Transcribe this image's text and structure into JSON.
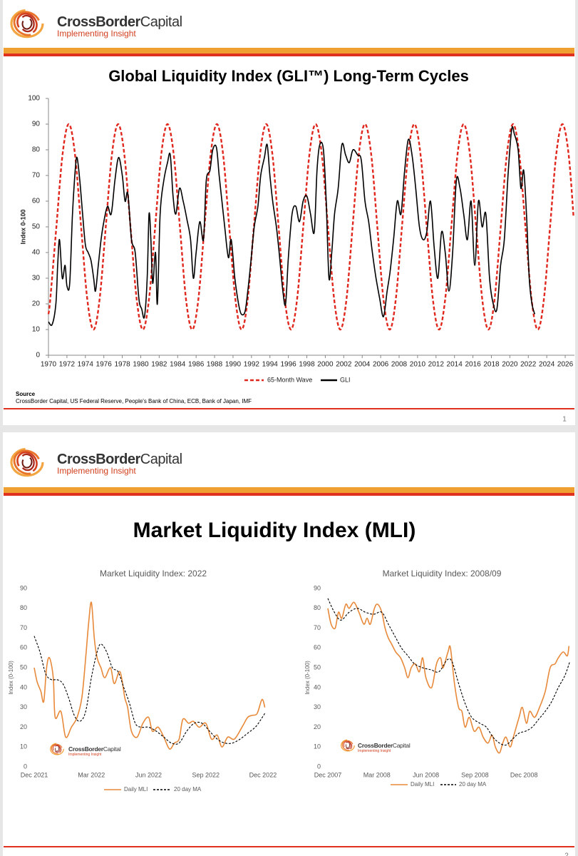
{
  "slides": [
    {
      "logo": {
        "name_bold": "CrossBorder",
        "name_regular": "Capital",
        "tagline": "Implementing Insight"
      },
      "title": "Global Liquidity Index (GLI™) Long-Term Cycles",
      "source_label": "Source",
      "source": "CrossBorder Capital, US Federal Reserve, People's Bank of China, ECB, Bank of Japan, IMF",
      "page": "1"
    },
    {
      "logo": {
        "name_bold": "CrossBorder",
        "name_regular": "Capital",
        "tagline": "Implementing Insight"
      },
      "title": "Market Liquidity Index (MLI)",
      "page": "2"
    }
  ],
  "chart_data": [
    {
      "type": "line",
      "ylabel": "Index 0-100",
      "xlim": [
        1970,
        2027
      ],
      "ylim": [
        0,
        100
      ],
      "yticks": [
        0,
        10,
        20,
        30,
        40,
        50,
        60,
        70,
        80,
        90,
        100
      ],
      "xticks": [
        1970,
        1972,
        1974,
        1976,
        1978,
        1980,
        1982,
        1984,
        1986,
        1988,
        1990,
        1992,
        1994,
        1996,
        1998,
        2000,
        2002,
        2004,
        2006,
        2008,
        2010,
        2012,
        2014,
        2016,
        2018,
        2020,
        2022,
        2024,
        2026
      ],
      "series": [
        {
          "name": "65-Month Wave",
          "color": "#e0281e",
          "dash": true,
          "x": [
            1970.0,
            1970.19,
            1970.86,
            1971.53,
            1972.2,
            1972.87,
            1973.54,
            1974.21,
            1974.88,
            1975.54,
            1976.21,
            1976.88,
            1977.55,
            1978.22,
            1978.89,
            1979.56,
            1980.23,
            1980.89,
            1981.56,
            1982.23,
            1982.9,
            1983.57,
            1984.24,
            1984.91,
            1985.58,
            1986.24,
            1986.91,
            1987.58,
            1988.25,
            1988.92,
            1989.59,
            1990.26,
            1990.93,
            1991.59,
            1992.26,
            1992.93,
            1993.6,
            1994.27,
            1994.94,
            1995.61,
            1996.28,
            1996.94,
            1997.61,
            1998.28,
            1998.95,
            1999.62,
            2000.29,
            2000.96,
            2001.63,
            2002.29,
            2002.96,
            2003.63,
            2004.3,
            2004.97,
            2005.64,
            2006.31,
            2006.98,
            2007.64,
            2008.31,
            2008.98,
            2009.65,
            2010.32,
            2010.99,
            2011.66,
            2012.33,
            2012.99,
            2013.66,
            2014.33,
            2015.0,
            2015.67,
            2016.34,
            2017.01,
            2017.68,
            2018.34,
            2019.01,
            2019.68,
            2020.35,
            2021.02,
            2021.69,
            2022.36,
            2023.03,
            2023.69,
            2024.36,
            2025.03,
            2025.7,
            2026.37,
            2026.9
          ],
          "values": [
            16,
            21.7,
            50,
            78.3,
            90,
            78.3,
            50,
            21.7,
            10,
            21.7,
            50,
            78.3,
            90,
            78.3,
            50,
            21.7,
            10,
            21.7,
            50,
            78.3,
            90,
            78.3,
            50,
            21.7,
            10,
            21.7,
            50,
            78.3,
            90,
            78.3,
            50,
            21.7,
            10,
            21.7,
            50,
            78.3,
            90,
            78.3,
            50,
            21.7,
            10,
            21.7,
            50,
            78.3,
            90,
            78.3,
            50,
            21.7,
            10,
            21.7,
            50,
            78.3,
            90,
            78.3,
            50,
            21.7,
            10,
            21.7,
            50,
            78.3,
            90,
            78.3,
            50,
            21.7,
            10,
            21.7,
            50,
            78.3,
            90,
            78.3,
            50,
            21.7,
            10,
            21.7,
            50,
            78.3,
            90,
            78.3,
            50,
            21.7,
            10,
            21.7,
            50,
            78.3,
            90,
            78.3,
            54
          ]
        },
        {
          "name": "GLI",
          "color": "#000000",
          "dash": false,
          "x": [
            1970.0,
            1970.4,
            1970.8,
            1971.0,
            1971.2,
            1971.5,
            1971.8,
            1972.0,
            1972.3,
            1972.6,
            1972.9,
            1973.1,
            1973.4,
            1973.7,
            1974.0,
            1974.3,
            1974.6,
            1974.9,
            1975.1,
            1975.4,
            1975.7,
            1976.0,
            1976.4,
            1976.8,
            1977.2,
            1977.6,
            1978.0,
            1978.3,
            1978.6,
            1979.0,
            1979.4,
            1979.8,
            1980.1,
            1980.4,
            1980.7,
            1980.9,
            1981.1,
            1981.3,
            1981.6,
            1981.8,
            1982.1,
            1982.5,
            1982.9,
            1983.2,
            1983.5,
            1983.8,
            1984.2,
            1984.6,
            1985.0,
            1985.4,
            1985.7,
            1986.0,
            1986.4,
            1986.8,
            1987.1,
            1987.5,
            1987.8,
            1988.2,
            1988.5,
            1988.8,
            1989.1,
            1989.5,
            1989.8,
            1990.2,
            1990.6,
            1990.9,
            1991.3,
            1991.6,
            1991.9,
            1992.3,
            1992.7,
            1993.0,
            1993.4,
            1993.7,
            1994.0,
            1994.3,
            1994.7,
            1995.0,
            1995.4,
            1995.7,
            1996.0,
            1996.4,
            1996.8,
            1997.2,
            1997.6,
            1998.0,
            1998.4,
            1998.8,
            1999.1,
            1999.4,
            1999.8,
            2000.1,
            2000.4,
            2000.7,
            2001.0,
            2001.4,
            2001.8,
            2002.2,
            2002.6,
            2003.0,
            2003.5,
            2003.9,
            2004.3,
            2004.7,
            2005.1,
            2005.5,
            2005.9,
            2006.3,
            2006.7,
            2007.0,
            2007.4,
            2007.8,
            2008.2,
            2008.6,
            2009.0,
            2009.4,
            2009.8,
            2010.2,
            2010.6,
            2011.0,
            2011.4,
            2011.8,
            2012.2,
            2012.6,
            2013.0,
            2013.4,
            2013.8,
            2014.2,
            2014.6,
            2015.0,
            2015.4,
            2015.8,
            2016.2,
            2016.6,
            2017.0,
            2017.4,
            2017.8,
            2018.2,
            2018.6,
            2019.0,
            2019.4,
            2019.8,
            2020.2,
            2020.5,
            2020.9,
            2021.2,
            2021.5,
            2021.8,
            2022.1,
            2022.4,
            2022.7
          ],
          "values": [
            13,
            12,
            20,
            35,
            45,
            30,
            35,
            27,
            28,
            55,
            72,
            77,
            68,
            55,
            43,
            40,
            37,
            30,
            25,
            35,
            45,
            52,
            58,
            55,
            68,
            77,
            70,
            60,
            63,
            45,
            40,
            22,
            18,
            15,
            30,
            55,
            45,
            28,
            40,
            20,
            55,
            68,
            75,
            78,
            62,
            55,
            65,
            60,
            53,
            45,
            30,
            40,
            52,
            45,
            68,
            72,
            80,
            81,
            70,
            60,
            50,
            38,
            45,
            30,
            20,
            16,
            17,
            25,
            35,
            50,
            58,
            70,
            77,
            82,
            70,
            60,
            50,
            40,
            25,
            20,
            38,
            55,
            58,
            52,
            60,
            62,
            55,
            48,
            72,
            82,
            80,
            60,
            30,
            40,
            55,
            65,
            82,
            78,
            75,
            80,
            78,
            76,
            60,
            52,
            40,
            30,
            22,
            15,
            25,
            32,
            45,
            60,
            55,
            72,
            84,
            78,
            65,
            50,
            45,
            48,
            60,
            42,
            30,
            48,
            40,
            25,
            40,
            68,
            65,
            55,
            45,
            60,
            35,
            60,
            50,
            55,
            30,
            20,
            18,
            35,
            45,
            70,
            88,
            86,
            80,
            65,
            72,
            55,
            30,
            20,
            16
          ]
        }
      ]
    },
    {
      "type": "line",
      "title": "Market Liquidity Index: 2022",
      "ylabel": "Index (0-100)",
      "xlim": [
        0,
        12.6
      ],
      "ylim": [
        0,
        90
      ],
      "yticks": [
        0,
        10,
        20,
        30,
        40,
        50,
        60,
        70,
        80,
        90
      ],
      "xticks": [
        {
          "value": 0,
          "label": "Dec 2021"
        },
        {
          "value": 3,
          "label": "Mar 2022"
        },
        {
          "value": 6,
          "label": "Jun 2022"
        },
        {
          "value": 9,
          "label": "Sep 2022"
        },
        {
          "value": 12,
          "label": "Dec 2022"
        }
      ],
      "watermark": {
        "name_bold": "CrossBorder",
        "name_regular": "Capital",
        "tagline": "Implementing Insight"
      },
      "series": [
        {
          "name": "Daily MLI",
          "color": "#e8893a",
          "dash": false,
          "x": [
            0,
            0.15,
            0.35,
            0.5,
            0.65,
            0.8,
            1.0,
            1.1,
            1.4,
            1.65,
            1.95,
            2.25,
            2.5,
            2.7,
            2.85,
            3.0,
            3.15,
            3.3,
            3.5,
            3.7,
            4.0,
            4.2,
            4.5,
            4.75,
            4.9,
            5.1,
            5.4,
            5.7,
            6.0,
            6.2,
            6.5,
            6.8,
            7.1,
            7.35,
            7.6,
            7.8,
            8.1,
            8.35,
            8.65,
            9.0,
            9.3,
            9.6,
            9.85,
            10.15,
            10.5,
            10.9,
            11.2,
            11.45,
            11.7,
            11.95,
            12.1
          ],
          "values": [
            50,
            43,
            38,
            33,
            50,
            55,
            45,
            25,
            28,
            15,
            20,
            25,
            35,
            55,
            72,
            83,
            65,
            55,
            50,
            45,
            50,
            42,
            48,
            35,
            30,
            18,
            15,
            22,
            25,
            18,
            20,
            15,
            9,
            12,
            14,
            24,
            22,
            23,
            20,
            22,
            14,
            16,
            10,
            15,
            14,
            20,
            25,
            26,
            27,
            34,
            30
          ]
        },
        {
          "name": "20 day MA",
          "color": "#000000",
          "dash": true,
          "x": [
            0,
            0.3,
            0.6,
            0.9,
            1.2,
            1.5,
            1.8,
            2.1,
            2.4,
            2.7,
            3.0,
            3.3,
            3.5,
            3.8,
            4.1,
            4.4,
            4.7,
            5.0,
            5.3,
            5.6,
            6.0,
            6.4,
            6.8,
            7.2,
            7.6,
            8.0,
            8.4,
            8.8,
            9.2,
            9.6,
            10.0,
            10.4,
            10.8,
            11.2,
            11.6,
            11.9,
            12.1
          ],
          "values": [
            66,
            58,
            47,
            44,
            44,
            42,
            35,
            26,
            23,
            28,
            45,
            58,
            62,
            58,
            50,
            48,
            40,
            32,
            22,
            20,
            20,
            18,
            15,
            12,
            12,
            18,
            22,
            22,
            18,
            14,
            12,
            12,
            14,
            17,
            20,
            24,
            27
          ]
        }
      ]
    },
    {
      "type": "line",
      "title": "Market Liquidity Index: 2008/09",
      "ylabel": "Index (0-100)",
      "xlim": [
        0,
        15
      ],
      "ylim": [
        0,
        90
      ],
      "yticks": [
        0,
        10,
        20,
        30,
        40,
        50,
        60,
        70,
        80,
        90
      ],
      "xticks": [
        {
          "value": 0,
          "label": "Dec 2007"
        },
        {
          "value": 3,
          "label": "Mar 2008"
        },
        {
          "value": 6,
          "label": "Jun 2008"
        },
        {
          "value": 9,
          "label": "Sep 2008"
        },
        {
          "value": 12,
          "label": "Dec 2008"
        }
      ],
      "watermark": {
        "name_bold": "CrossBorder",
        "name_regular": "Capital",
        "tagline": "Implementing Insight"
      },
      "series": [
        {
          "name": "Daily MLI",
          "color": "#e8893a",
          "dash": false,
          "x": [
            0,
            0.2,
            0.45,
            0.65,
            0.85,
            1.1,
            1.3,
            1.6,
            1.9,
            2.2,
            2.4,
            2.6,
            2.85,
            3.05,
            3.3,
            3.5,
            3.7,
            3.9,
            4.15,
            4.45,
            4.7,
            4.9,
            5.1,
            5.35,
            5.6,
            5.8,
            6.0,
            6.35,
            6.65,
            6.9,
            7.05,
            7.35,
            7.5,
            7.75,
            8.0,
            8.2,
            8.4,
            8.65,
            8.95,
            9.25,
            9.5,
            9.8,
            10.05,
            10.25,
            10.5,
            10.7,
            10.9,
            11.15,
            11.35,
            11.7,
            11.9,
            12.15,
            12.35,
            12.65,
            12.95,
            13.3,
            13.6,
            13.9,
            14.1,
            14.4,
            14.65,
            14.75
          ],
          "values": [
            80,
            72,
            70,
            78,
            75,
            82,
            80,
            83,
            78,
            72,
            75,
            72,
            80,
            82,
            78,
            70,
            65,
            62,
            58,
            55,
            50,
            45,
            50,
            52,
            48,
            55,
            45,
            40,
            52,
            55,
            50,
            58,
            60,
            42,
            30,
            28,
            20,
            25,
            18,
            20,
            15,
            12,
            16,
            10,
            7,
            12,
            15,
            10,
            15,
            25,
            30,
            22,
            28,
            25,
            30,
            38,
            50,
            52,
            55,
            58,
            56,
            61
          ]
        },
        {
          "name": "20 day MA",
          "color": "#000000",
          "dash": true,
          "x": [
            0,
            0.4,
            0.8,
            1.3,
            1.8,
            2.3,
            2.8,
            3.3,
            3.7,
            4.1,
            4.5,
            4.9,
            5.3,
            5.8,
            6.3,
            6.8,
            7.3,
            7.6,
            8.0,
            8.4,
            8.8,
            9.3,
            9.7,
            10.1,
            10.5,
            10.9,
            11.3,
            11.7,
            12.1,
            12.5,
            12.9,
            13.3,
            13.7,
            14.1,
            14.5,
            14.8
          ],
          "values": [
            85,
            78,
            74,
            78,
            80,
            78,
            77,
            78,
            72,
            66,
            60,
            56,
            52,
            50,
            49,
            48,
            54,
            53,
            42,
            32,
            25,
            22,
            20,
            15,
            12,
            11,
            14,
            17,
            18,
            20,
            24,
            28,
            33,
            40,
            46,
            53
          ]
        }
      ]
    }
  ]
}
